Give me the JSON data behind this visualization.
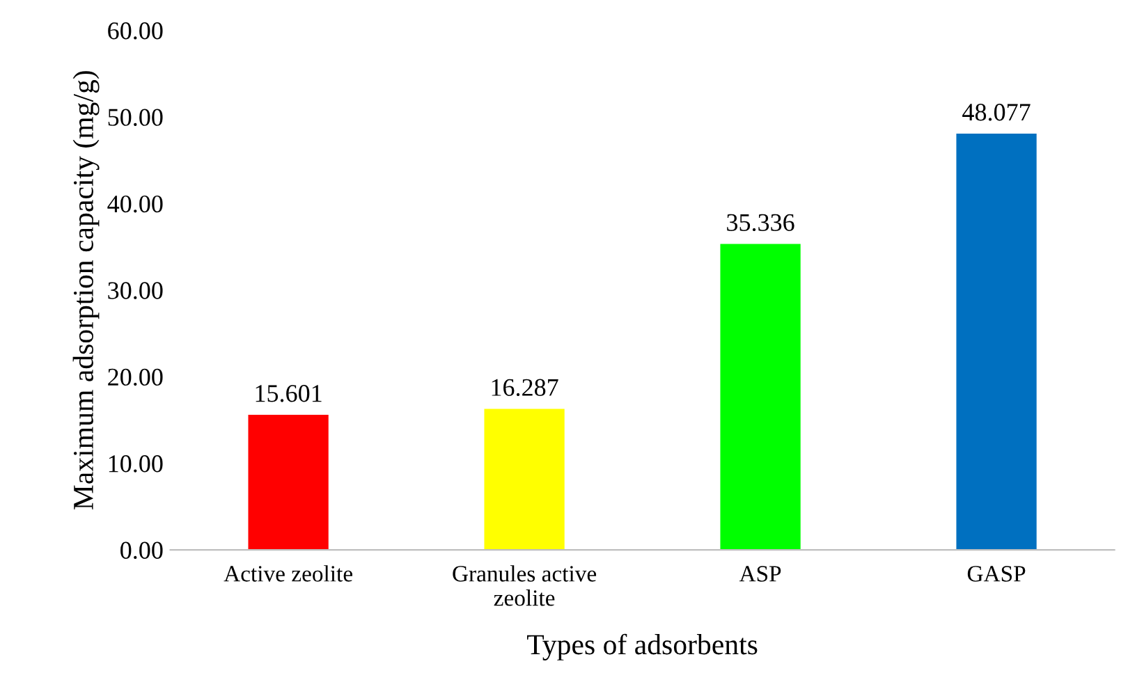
{
  "chart_data": {
    "type": "bar",
    "xlabel": "Types of adsorbents",
    "ylabel": "Maximum adsorption capacity (mg/g)",
    "categories": [
      "Active zeolite",
      "Granules active\nzeolite",
      "ASP",
      "GASP"
    ],
    "values": [
      15.601,
      16.287,
      35.336,
      48.077
    ],
    "colors": [
      "#ff0000",
      "#ffff00",
      "#00ff00",
      "#0070c0"
    ],
    "ylim": [
      0,
      60
    ],
    "yticks": [
      {
        "value": 0,
        "label": "0.00"
      },
      {
        "value": 10,
        "label": "10.00"
      },
      {
        "value": 20,
        "label": "20.00"
      },
      {
        "value": 30,
        "label": "30.00"
      },
      {
        "value": 40,
        "label": "40.00"
      },
      {
        "value": 50,
        "label": "50.00"
      },
      {
        "value": 60,
        "label": "60.00"
      }
    ],
    "data_labels": true,
    "grid": false,
    "legend": false
  }
}
